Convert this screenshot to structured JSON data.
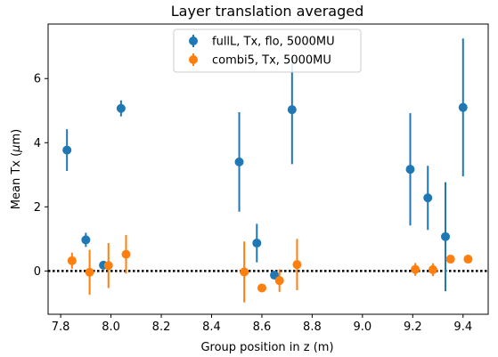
{
  "chart_data": {
    "type": "scatter",
    "title": "Layer translation averaged",
    "xlabel": "Group position in z (m)",
    "ylabel": "Mean Tx (μm)",
    "ylabel_prefix": "Mean Tx (",
    "ylabel_mu": "μ",
    "ylabel_suffix": "m)",
    "xlim": [
      7.75,
      9.5
    ],
    "ylim": [
      -1.35,
      7.7
    ],
    "xticks": [
      7.8,
      8.0,
      8.2,
      8.4,
      8.6,
      8.8,
      9.0,
      9.2,
      9.4
    ],
    "xtick_labels": [
      "7.8",
      "8.0",
      "8.2",
      "8.4",
      "8.6",
      "8.8",
      "9.0",
      "9.2",
      "9.4"
    ],
    "yticks": [
      0,
      2,
      4,
      6
    ],
    "ytick_labels": [
      "0",
      "2",
      "4",
      "6"
    ],
    "grid": false,
    "legend_position": "top-center",
    "reference_line": {
      "y": 0,
      "style": "dotted",
      "color": "#000000"
    },
    "series": [
      {
        "name": "fullL, Tx, flo, 5000MU",
        "color": "#1f77b4",
        "x": [
          7.825,
          7.9,
          7.97,
          8.04,
          8.51,
          8.58,
          8.65,
          8.72,
          9.19,
          9.26,
          9.33,
          9.4
        ],
        "y": [
          3.77,
          0.97,
          0.18,
          5.07,
          3.4,
          0.87,
          -0.13,
          5.03,
          3.17,
          2.28,
          1.07,
          5.1
        ],
        "err": [
          0.65,
          0.22,
          0.05,
          0.25,
          1.55,
          0.6,
          0.1,
          1.7,
          1.75,
          1.0,
          1.7,
          2.15
        ]
      },
      {
        "name": "combi5, Tx, 5000MU",
        "color": "#ff7f0e",
        "x": [
          7.845,
          7.915,
          7.99,
          8.06,
          8.53,
          8.6,
          8.67,
          8.74,
          9.21,
          9.28,
          9.35,
          9.42
        ],
        "y": [
          0.32,
          -0.04,
          0.17,
          0.52,
          -0.03,
          -0.53,
          -0.3,
          0.2,
          0.05,
          0.04,
          0.37,
          0.37
        ],
        "err": [
          0.25,
          0.7,
          0.7,
          0.6,
          0.95,
          0.08,
          0.35,
          0.8,
          0.2,
          0.2,
          0.08,
          0.08
        ]
      }
    ]
  }
}
